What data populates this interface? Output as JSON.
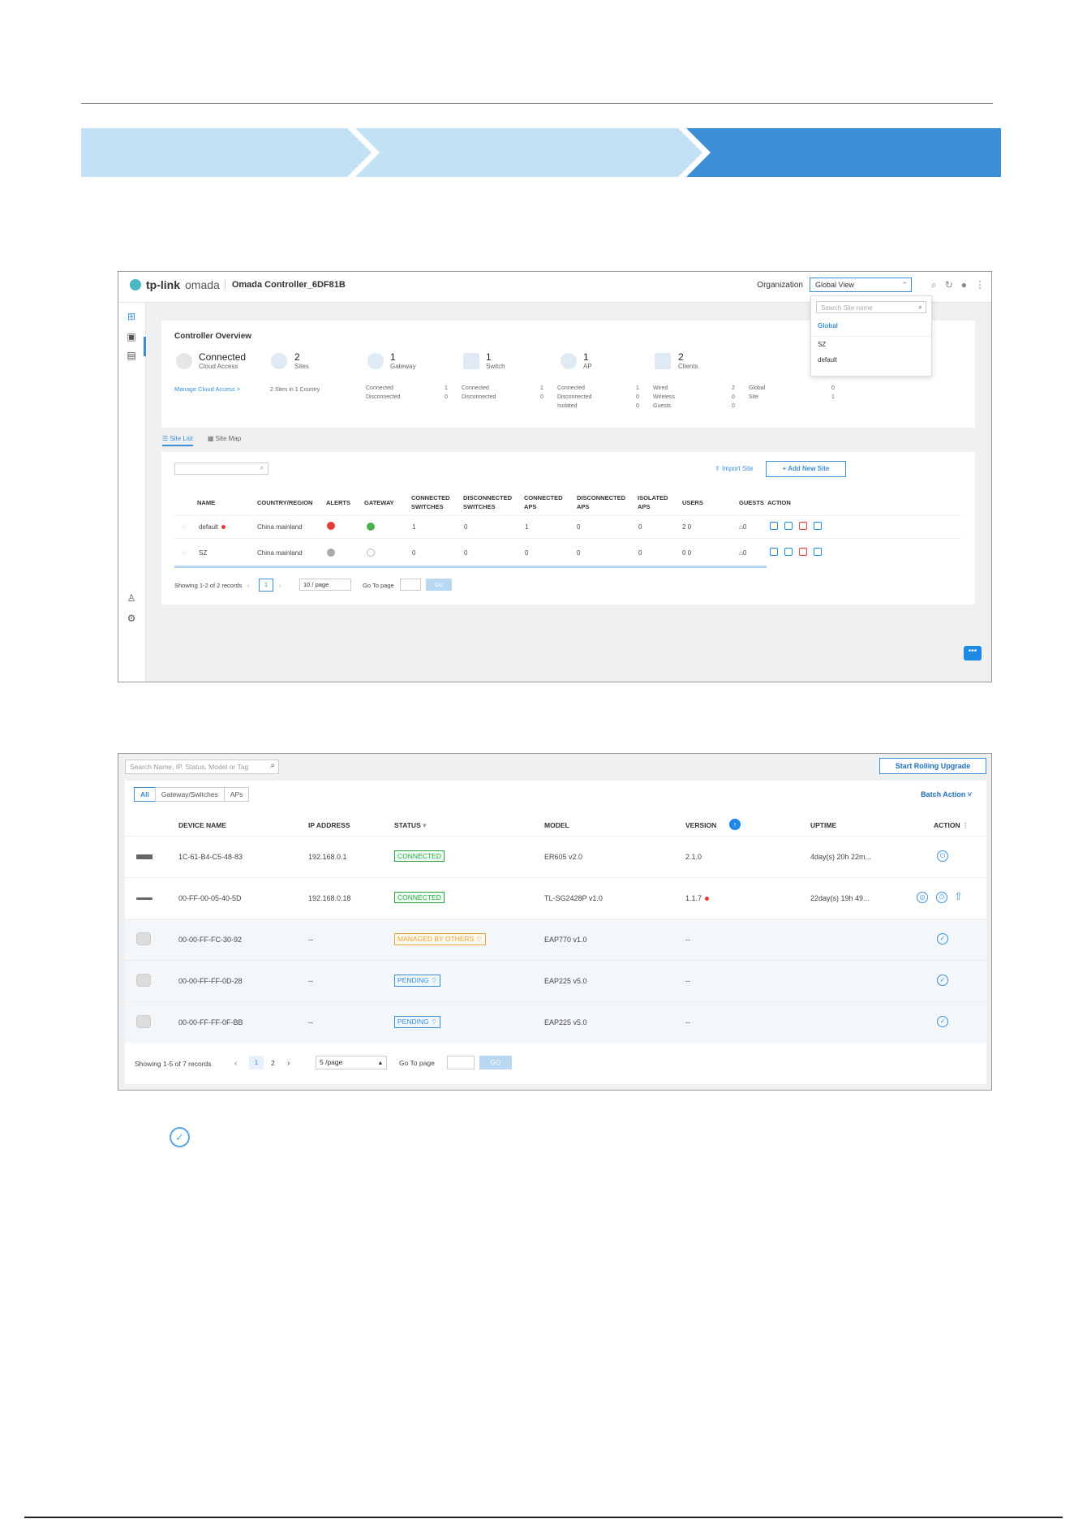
{
  "header1": {
    "logo_tp": "tp-link",
    "logo_omada": "omada",
    "controller_name": "Omada Controller_6DF81B",
    "organization_label": "Organization",
    "organization_value": "Global View"
  },
  "dropdown": {
    "search_placeholder": "Search Site name",
    "items": [
      "Global",
      "SZ",
      "default"
    ]
  },
  "overview": {
    "title": "Controller Overview",
    "cloud_status": "Connected",
    "cloud_label": "Cloud Access",
    "manage_link": "Manage Cloud Access >",
    "sites_count": "2",
    "sites_label": "Sites",
    "sites_sub": "2 Sites in 1 Country",
    "gateway_count": "1",
    "gateway_label": "Gateway",
    "switch_count": "1",
    "switch_label": "Switch",
    "ap_count": "1",
    "ap_label": "AP",
    "clients_count": "2",
    "clients_label": "Clients",
    "gw_sub_labels": "Connected\nDisconnected",
    "gw_sub_values": "1\n0",
    "sw_sub_labels": "Connected\nDisconnected",
    "sw_sub_values": "1\n0",
    "ap_sub_labels": "Connected\nDisconnected\nIsolated",
    "ap_sub_values": "1\n0\n0",
    "cl_sub_labels": "Wired\nWireless\nGuests",
    "cl_sub_values": "2\n0\n0",
    "gl_sub_labels": "Global\nSite",
    "gl_sub_values": "0\n1"
  },
  "tabs": {
    "site_list": "Site List",
    "site_map": "Site Map"
  },
  "site_list": {
    "import_label": "Import Site",
    "add_label": "+ Add New Site",
    "headers": [
      "NAME",
      "COUNTRY/REGION",
      "ALERTS",
      "GATEWAY",
      "CONNECTED SWITCHES",
      "DISCONNECTED SWITCHES",
      "CONNECTED APS",
      "DISCONNECTED APS",
      "ISOLATED APS",
      "USERS",
      "GUESTS",
      "ACTION"
    ],
    "rows": [
      {
        "name": "default",
        "country": "China mainland",
        "conn_sw": "1",
        "disc_sw": "0",
        "conn_ap": "1",
        "disc_ap": "0",
        "iso_ap": "0",
        "users": "2   0",
        "guests": "0"
      },
      {
        "name": "SZ",
        "country": "China mainland",
        "conn_sw": "0",
        "disc_sw": "0",
        "conn_ap": "0",
        "disc_ap": "0",
        "iso_ap": "0",
        "users": "0   0",
        "guests": "0"
      }
    ],
    "showing": "Showing 1-2 of 2 records",
    "page": "1",
    "per_page": "10 / page",
    "goto_label": "Go To page",
    "go_label": "Go"
  },
  "devices": {
    "search_placeholder": "Search Name, IP, Status, Model or Tag",
    "rolling_label": "Start Rolling Upgrade",
    "filter_tabs": [
      "All",
      "Gateway/Switches",
      "APs"
    ],
    "batch_label": "Batch Action",
    "headers": [
      "DEVICE NAME",
      "IP ADDRESS",
      "STATUS",
      "MODEL",
      "VERSION",
      "UPTIME",
      "ACTION"
    ],
    "rows": [
      {
        "name": "1C-61-B4-C5-48-83",
        "ip": "192.168.0.1",
        "status": "CONNECTED",
        "model": "ER605 v2.0",
        "version": "2.1.0",
        "uptime": "4day(s) 20h 22m..."
      },
      {
        "name": "00-FF-00-05-40-5D",
        "ip": "192.168.0.18",
        "status": "CONNECTED",
        "model": "TL-SG2428P v1.0",
        "version": "1.1.7",
        "uptime": "22day(s) 19h 49..."
      },
      {
        "name": "00-00-FF-FC-30-92",
        "ip": "--",
        "status": "MANAGED BY OTHERS",
        "model": "EAP770 v1.0",
        "version": "--",
        "uptime": ""
      },
      {
        "name": "00-00-FF-FF-0D-28",
        "ip": "--",
        "status": "PENDING",
        "model": "EAP225 v5.0",
        "version": "--",
        "uptime": ""
      },
      {
        "name": "00-00-FF-FF-0F-BB",
        "ip": "--",
        "status": "PENDING",
        "model": "EAP225 v5.0",
        "version": "--",
        "uptime": ""
      }
    ],
    "showing": "Showing 1-5 of 7 records",
    "pages": [
      "1",
      "2"
    ],
    "per_page": "5 /page",
    "goto_label": "Go To page",
    "go_label": "GO"
  },
  "colors": {
    "accent": "#3b8fd6",
    "connected": "#2ea043",
    "managed": "#e8a33d",
    "alert": "#e53935"
  }
}
